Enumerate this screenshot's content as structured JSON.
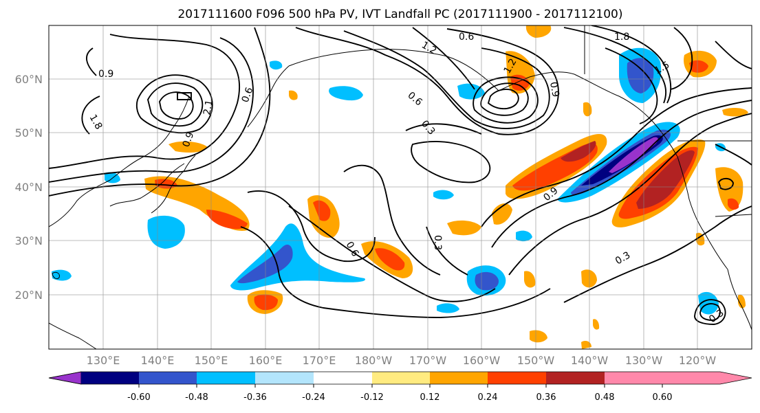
{
  "title": "2017111600 F096 500 hPa PV, IVT Landfall PC (2017111900 - 2017112100)",
  "lat_labels": [
    "20°N",
    "30°N",
    "40°N",
    "50°N",
    "60°N"
  ],
  "lon_labels": [
    "130°E",
    "140°E",
    "150°E",
    "160°E",
    "170°E",
    "180°W",
    "170°W",
    "160°W",
    "150°W",
    "140°W",
    "130°W",
    "120°W"
  ],
  "colorbar": {
    "ticks": [
      "-0.60",
      "-0.48",
      "-0.36",
      "-0.24",
      "-0.12",
      "0.12",
      "0.24",
      "0.36",
      "0.48",
      "0.60"
    ],
    "colors": [
      "#9933cc",
      "#000080",
      "#3355cc",
      "#00bfff",
      "#b3e5fc",
      "#ffffff",
      "#ffeb80",
      "#ffa500",
      "#ff4000",
      "#b22222",
      "#ff88aa"
    ]
  },
  "contour_labels": [
    "0.9",
    "1.8",
    "2.1",
    "0.6",
    "0.6",
    "1.2",
    "0.3",
    "0.6",
    "0.9",
    "1.8",
    "1.5",
    "0.9",
    "0.6",
    "0.3",
    "0.3",
    "0.3",
    "1.2",
    "0.9"
  ]
}
